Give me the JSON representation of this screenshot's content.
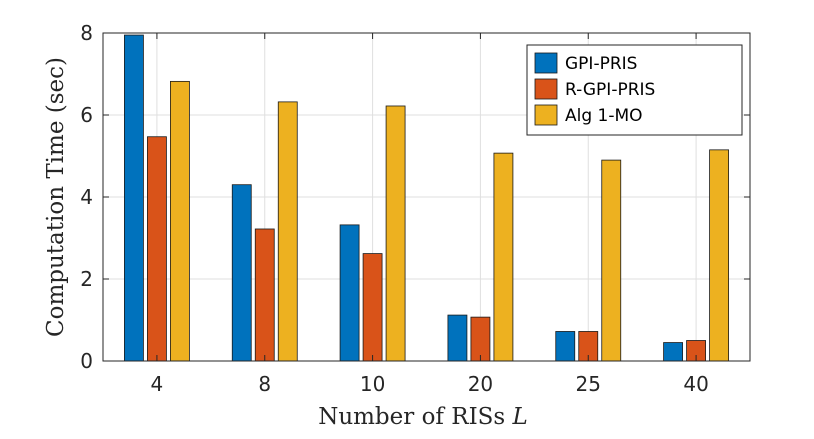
{
  "chart_data": {
    "type": "bar",
    "title": "",
    "xlabel_text": "Number of RISs",
    "xlabel_var": "L",
    "ylabel": "Computation Time (sec)",
    "categories": [
      "4",
      "8",
      "10",
      "20",
      "25",
      "40"
    ],
    "ylim": [
      0,
      8
    ],
    "yticks": [
      "0",
      "2",
      "4",
      "6",
      "8"
    ],
    "grid": true,
    "legend_position": "top-right",
    "series": [
      {
        "name": "GPI-PRIS",
        "color": "#0072BD",
        "values": [
          7.95,
          4.3,
          3.32,
          1.12,
          0.72,
          0.45
        ]
      },
      {
        "name": "R-GPI-PRIS",
        "color": "#D95319",
        "values": [
          5.47,
          3.22,
          2.62,
          1.07,
          0.72,
          0.5
        ]
      },
      {
        "name": "Alg 1-MO",
        "color": "#EDB120",
        "values": [
          6.82,
          6.32,
          6.22,
          5.07,
          4.9,
          5.15
        ]
      }
    ]
  }
}
